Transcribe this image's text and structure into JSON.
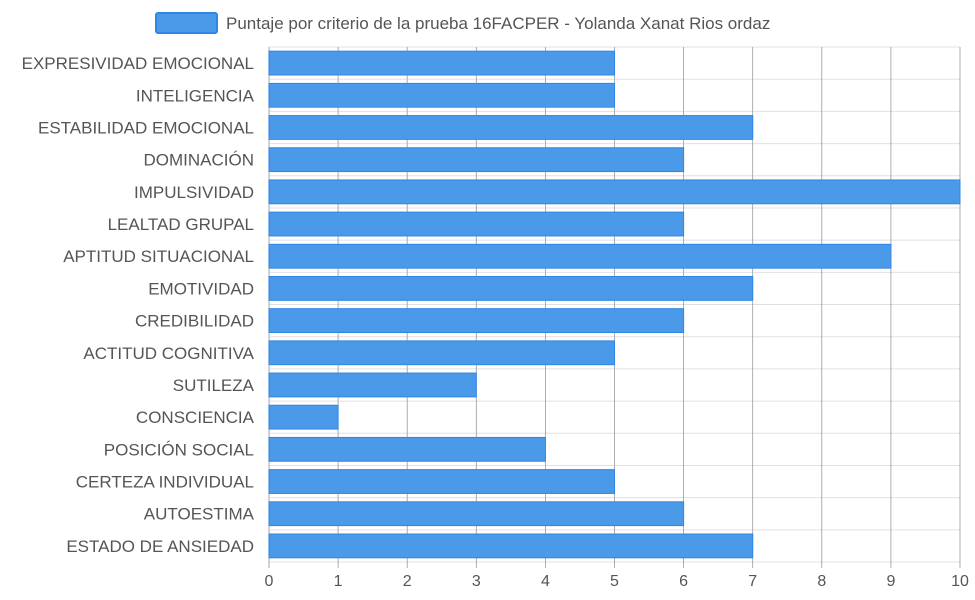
{
  "chart_data": {
    "type": "bar",
    "orientation": "horizontal",
    "title": "",
    "categories": [
      "EXPRESIVIDAD EMOCIONAL",
      "INTELIGENCIA",
      "ESTABILIDAD EMOCIONAL",
      "DOMINACIÓN",
      "IMPULSIVIDAD",
      "LEALTAD GRUPAL",
      "APTITUD SITUACIONAL",
      "EMOTIVIDAD",
      "CREDIBILIDAD",
      "ACTITUD COGNITIVA",
      "SUTILEZA",
      "CONSCIENCIA",
      "POSICIÓN SOCIAL",
      "CERTEZA INDIVIDUAL",
      "AUTOESTIMA",
      "ESTADO DE ANSIEDAD"
    ],
    "series": [
      {
        "name": "Puntaje por criterio de la prueba 16FACPER - Yolanda Xanat Rios ordaz",
        "values": [
          5,
          5,
          7,
          6,
          10,
          6,
          9,
          7,
          6,
          5,
          3,
          1,
          4,
          5,
          6,
          7
        ]
      }
    ],
    "xlim": [
      0,
      10
    ],
    "xticks": [
      "0",
      "1",
      "2",
      "3",
      "4",
      "5",
      "6",
      "7",
      "8",
      "9",
      "10"
    ],
    "xlabel": "",
    "ylabel": "",
    "grid": true,
    "legend_position": "top",
    "colors": {
      "bar_fill": "#4a9ae9",
      "bar_stroke": "#2f86e3",
      "grid": "#e0e0e0",
      "axis": "#b5b5b5",
      "text": "#555555"
    }
  }
}
